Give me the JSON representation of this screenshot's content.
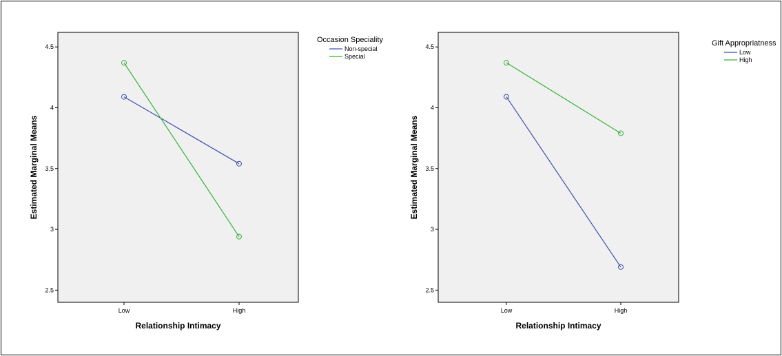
{
  "chart_data": [
    {
      "type": "line",
      "xlabel": "Relationship Intimacy",
      "ylabel": "Estimated Marginal Means",
      "categories": [
        "Low",
        "High"
      ],
      "ylim": [
        2.4,
        4.62
      ],
      "yticks": [
        "2.5",
        "3",
        "3.5",
        "4",
        "4.5"
      ],
      "legend_title": "Occasion Speciality",
      "legend_position": "right",
      "series": [
        {
          "name": "Non-special",
          "color": "#3a50b4",
          "values": [
            4.09,
            3.54
          ]
        },
        {
          "name": "Special",
          "color": "#32b432",
          "values": [
            4.37,
            2.94
          ]
        }
      ]
    },
    {
      "type": "line",
      "xlabel": "Relationship Intimacy",
      "ylabel": "Estimated Marginal Means",
      "categories": [
        "Low",
        "High"
      ],
      "ylim": [
        2.4,
        4.62
      ],
      "yticks": [
        "2.5",
        "3",
        "3.5",
        "4",
        "4.5"
      ],
      "legend_title": "Gift Appropriatness",
      "legend_position": "right",
      "series": [
        {
          "name": "Low",
          "color": "#3a50b4",
          "values": [
            4.09,
            2.69
          ]
        },
        {
          "name": "High",
          "color": "#32b432",
          "values": [
            4.37,
            3.79
          ]
        }
      ]
    }
  ]
}
